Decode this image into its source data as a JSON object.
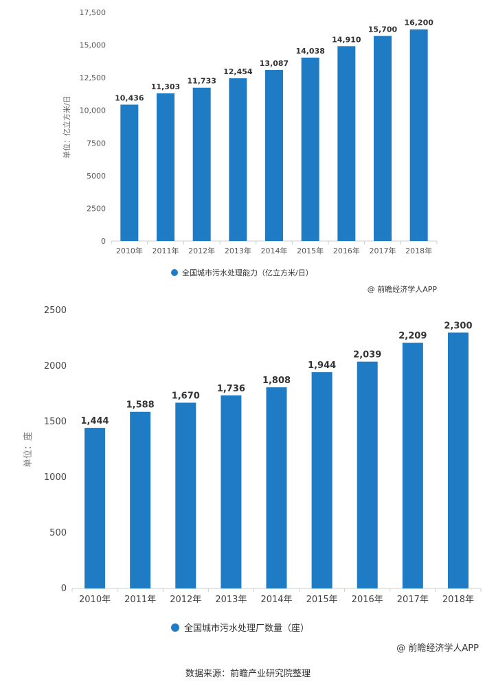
{
  "chart_data": [
    {
      "type": "bar",
      "categories": [
        "2010年",
        "2011年",
        "2012年",
        "2013年",
        "2014年",
        "2015年",
        "2016年",
        "2017年",
        "2018年"
      ],
      "values": [
        10436,
        11303,
        11733,
        12454,
        13087,
        14038,
        14910,
        15700,
        16200
      ],
      "data_labels": [
        "10,436",
        "11,303",
        "11,733",
        "12,454",
        "13,087",
        "14,038",
        "14,910",
        "15,700",
        "16,200"
      ],
      "yticks": [
        "0",
        "2500",
        "5000",
        "7500",
        "10,000",
        "12,500",
        "15,000",
        "17,500"
      ],
      "ylim": [
        0,
        17500
      ],
      "ylabel": "单位：亿立方米/日",
      "legend": "全国城市污水处理能力（亿立方米/日）",
      "legend_position": "bottom-center",
      "credit": "@ 前瞻经济学人APP",
      "grid": false,
      "color": "#1f7bc4"
    },
    {
      "type": "bar",
      "categories": [
        "2010年",
        "2011年",
        "2012年",
        "2013年",
        "2014年",
        "2015年",
        "2016年",
        "2017年",
        "2018年"
      ],
      "values": [
        1444,
        1588,
        1670,
        1736,
        1808,
        1944,
        2039,
        2209,
        2300
      ],
      "data_labels": [
        "1,444",
        "1,588",
        "1,670",
        "1,736",
        "1,808",
        "1,944",
        "2,039",
        "2,209",
        "2,300"
      ],
      "yticks": [
        "0",
        "500",
        "1000",
        "1500",
        "2000",
        "2500"
      ],
      "ylim": [
        0,
        2500
      ],
      "ylabel": "单位：座",
      "legend": "全国城市污水处理厂数量（座）",
      "legend_position": "bottom-center",
      "credit": "@ 前瞻经济学人APP",
      "grid": false,
      "color": "#1f7bc4"
    }
  ],
  "source": "数据来源：前瞻产业研究院整理"
}
